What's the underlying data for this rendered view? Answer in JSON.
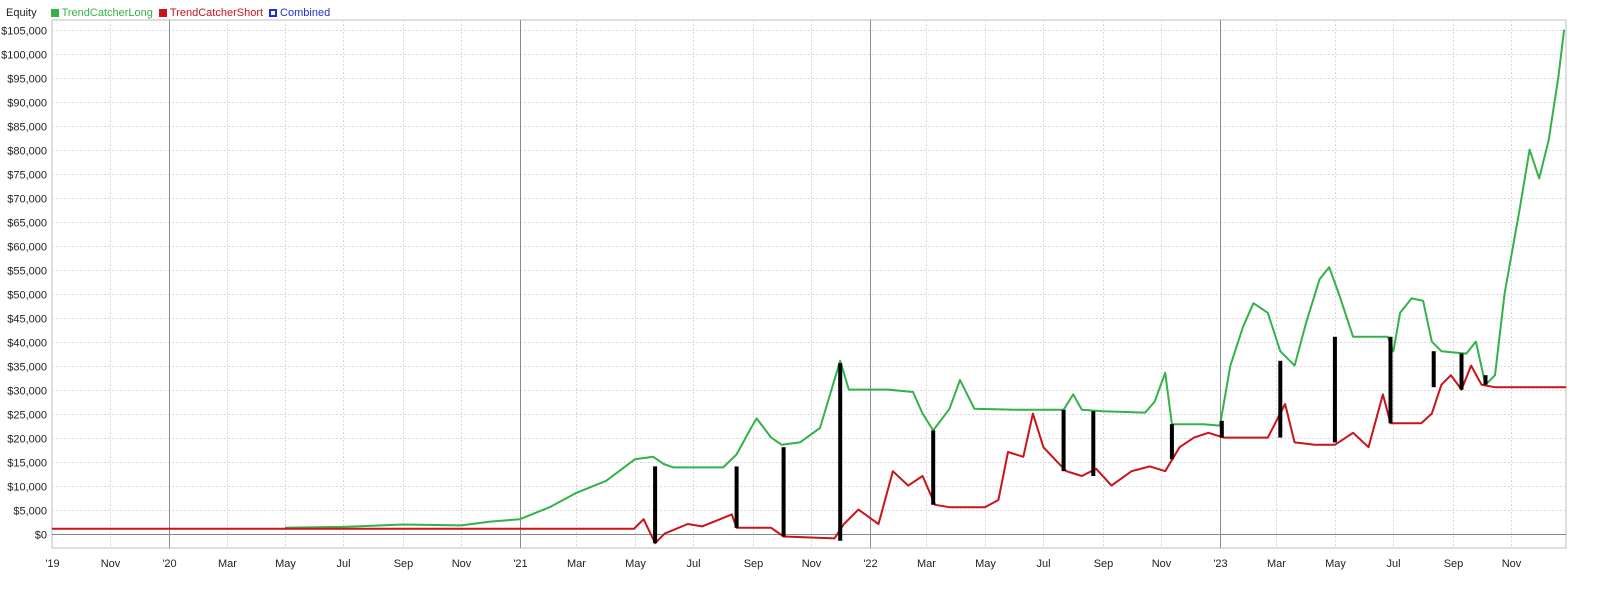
{
  "legend": {
    "title": "Equity",
    "items": [
      {
        "label": "TrendCatcherLong",
        "color": "#33b249",
        "filled": true
      },
      {
        "label": "TrendCatcherShort",
        "color": "#c8141b",
        "filled": true
      },
      {
        "label": "Combined",
        "color": "#1f2fd6",
        "filled": false
      }
    ]
  },
  "chart_data": {
    "type": "line",
    "title": "",
    "xlabel": "",
    "ylabel": "",
    "xlim": [
      "2019-09-01",
      "2023-12-28"
    ],
    "ylim": [
      -3000,
      107000
    ],
    "grid": true,
    "legend_position": "top-left",
    "x_ticks": [
      {
        "date": "2019-09-01",
        "label": "'19",
        "year_start": false
      },
      {
        "date": "2019-11-01",
        "label": "Nov",
        "year_start": false
      },
      {
        "date": "2020-01-01",
        "label": "'20",
        "year_start": true
      },
      {
        "date": "2020-03-01",
        "label": "Mar",
        "year_start": false
      },
      {
        "date": "2020-05-01",
        "label": "May",
        "year_start": false
      },
      {
        "date": "2020-07-01",
        "label": "Jul",
        "year_start": false
      },
      {
        "date": "2020-09-01",
        "label": "Sep",
        "year_start": false
      },
      {
        "date": "2020-11-01",
        "label": "Nov",
        "year_start": false
      },
      {
        "date": "2021-01-01",
        "label": "'21",
        "year_start": true
      },
      {
        "date": "2021-03-01",
        "label": "Mar",
        "year_start": false
      },
      {
        "date": "2021-05-01",
        "label": "May",
        "year_start": false
      },
      {
        "date": "2021-07-01",
        "label": "Jul",
        "year_start": false
      },
      {
        "date": "2021-09-01",
        "label": "Sep",
        "year_start": false
      },
      {
        "date": "2021-11-01",
        "label": "Nov",
        "year_start": false
      },
      {
        "date": "2022-01-01",
        "label": "'22",
        "year_start": true
      },
      {
        "date": "2022-03-01",
        "label": "Mar",
        "year_start": false
      },
      {
        "date": "2022-05-01",
        "label": "May",
        "year_start": false
      },
      {
        "date": "2022-07-01",
        "label": "Jul",
        "year_start": false
      },
      {
        "date": "2022-09-01",
        "label": "Sep",
        "year_start": false
      },
      {
        "date": "2022-11-01",
        "label": "Nov",
        "year_start": false
      },
      {
        "date": "2023-01-01",
        "label": "'23",
        "year_start": true
      },
      {
        "date": "2023-03-01",
        "label": "Mar",
        "year_start": false
      },
      {
        "date": "2023-05-01",
        "label": "May",
        "year_start": false
      },
      {
        "date": "2023-07-01",
        "label": "Jul",
        "year_start": false
      },
      {
        "date": "2023-09-01",
        "label": "Sep",
        "year_start": false
      },
      {
        "date": "2023-11-01",
        "label": "Nov",
        "year_start": false
      }
    ],
    "y_ticks": [
      {
        "value": 0,
        "label": "$0"
      },
      {
        "value": 5000,
        "label": "$5,000"
      },
      {
        "value": 10000,
        "label": "$10,000"
      },
      {
        "value": 15000,
        "label": "$15,000"
      },
      {
        "value": 20000,
        "label": "$20,000"
      },
      {
        "value": 25000,
        "label": "$25,000"
      },
      {
        "value": 30000,
        "label": "$30,000"
      },
      {
        "value": 35000,
        "label": "$35,000"
      },
      {
        "value": 40000,
        "label": "$40,000"
      },
      {
        "value": 45000,
        "label": "$45,000"
      },
      {
        "value": 50000,
        "label": "$50,000"
      },
      {
        "value": 55000,
        "label": "$55,000"
      },
      {
        "value": 60000,
        "label": "$60,000"
      },
      {
        "value": 65000,
        "label": "$65,000"
      },
      {
        "value": 70000,
        "label": "$70,000"
      },
      {
        "value": 75000,
        "label": "$75,000"
      },
      {
        "value": 80000,
        "label": "$80,000"
      },
      {
        "value": 85000,
        "label": "$85,000"
      },
      {
        "value": 90000,
        "label": "$90,000"
      },
      {
        "value": 95000,
        "label": "$95,000"
      },
      {
        "value": 100000,
        "label": "$100,000"
      },
      {
        "value": 105000,
        "label": "$105,000"
      }
    ],
    "series": [
      {
        "name": "TrendCatcherLong",
        "color": "#33b249",
        "points": [
          [
            "2020-05-01",
            1200
          ],
          [
            "2020-07-01",
            1400
          ],
          [
            "2020-09-01",
            1900
          ],
          [
            "2020-11-01",
            1700
          ],
          [
            "2020-12-01",
            2500
          ],
          [
            "2021-01-01",
            3000
          ],
          [
            "2021-02-01",
            5500
          ],
          [
            "2021-03-01",
            8500
          ],
          [
            "2021-04-01",
            11000
          ],
          [
            "2021-05-01",
            15500
          ],
          [
            "2021-05-20",
            16000
          ],
          [
            "2021-05-31",
            14500
          ],
          [
            "2021-06-10",
            13800
          ],
          [
            "2021-08-01",
            13800
          ],
          [
            "2021-08-15",
            16500
          ],
          [
            "2021-08-30",
            22000
          ],
          [
            "2021-09-05",
            24000
          ],
          [
            "2021-09-20",
            20000
          ],
          [
            "2021-10-01",
            18500
          ],
          [
            "2021-10-20",
            19000
          ],
          [
            "2021-11-10",
            22000
          ],
          [
            "2021-11-22",
            30000
          ],
          [
            "2021-12-01",
            36000
          ],
          [
            "2021-12-10",
            30000
          ],
          [
            "2022-01-20",
            30000
          ],
          [
            "2022-02-15",
            29500
          ],
          [
            "2022-02-25",
            25000
          ],
          [
            "2022-03-08",
            21500
          ],
          [
            "2022-03-25",
            26000
          ],
          [
            "2022-04-05",
            32000
          ],
          [
            "2022-04-20",
            26000
          ],
          [
            "2022-06-01",
            25800
          ],
          [
            "2022-07-10",
            25800
          ],
          [
            "2022-07-22",
            25800
          ],
          [
            "2022-08-01",
            29000
          ],
          [
            "2022-08-10",
            25800
          ],
          [
            "2022-09-01",
            25500
          ],
          [
            "2022-10-15",
            25200
          ],
          [
            "2022-10-25",
            27500
          ],
          [
            "2022-11-05",
            33500
          ],
          [
            "2022-11-12",
            22800
          ],
          [
            "2022-12-15",
            22800
          ],
          [
            "2023-01-01",
            22500
          ],
          [
            "2023-01-12",
            35000
          ],
          [
            "2023-01-25",
            43000
          ],
          [
            "2023-02-05",
            48000
          ],
          [
            "2023-02-20",
            46000
          ],
          [
            "2023-03-05",
            38000
          ],
          [
            "2023-03-20",
            35000
          ],
          [
            "2023-04-01",
            44000
          ],
          [
            "2023-04-15",
            53000
          ],
          [
            "2023-04-25",
            55500
          ],
          [
            "2023-05-05",
            50000
          ],
          [
            "2023-05-20",
            41000
          ],
          [
            "2023-06-25",
            41000
          ],
          [
            "2023-07-01",
            38000
          ],
          [
            "2023-07-08",
            46000
          ],
          [
            "2023-07-20",
            49000
          ],
          [
            "2023-08-01",
            48500
          ],
          [
            "2023-08-10",
            40000
          ],
          [
            "2023-08-20",
            38000
          ],
          [
            "2023-09-15",
            37500
          ],
          [
            "2023-09-25",
            40000
          ],
          [
            "2023-10-05",
            31000
          ],
          [
            "2023-10-15",
            33000
          ],
          [
            "2023-10-25",
            50000
          ],
          [
            "2023-11-10",
            68000
          ],
          [
            "2023-11-20",
            80000
          ],
          [
            "2023-11-30",
            74000
          ],
          [
            "2023-12-10",
            82000
          ],
          [
            "2023-12-20",
            95000
          ],
          [
            "2023-12-26",
            105000
          ]
        ]
      },
      {
        "name": "TrendCatcherShort",
        "color": "#c8141b",
        "points": [
          [
            "2019-09-01",
            1000
          ],
          [
            "2020-11-01",
            1000
          ],
          [
            "2021-04-30",
            1000
          ],
          [
            "2021-05-10",
            3000
          ],
          [
            "2021-05-22",
            -2000
          ],
          [
            "2021-06-01",
            0
          ],
          [
            "2021-06-25",
            2000
          ],
          [
            "2021-07-10",
            1500
          ],
          [
            "2021-08-10",
            4000
          ],
          [
            "2021-08-15",
            1200
          ],
          [
            "2021-09-20",
            1200
          ],
          [
            "2021-10-03",
            -600
          ],
          [
            "2021-11-25",
            -1000
          ],
          [
            "2021-12-05",
            2000
          ],
          [
            "2021-12-20",
            5000
          ],
          [
            "2022-01-10",
            2000
          ],
          [
            "2022-01-25",
            13000
          ],
          [
            "2022-02-10",
            10000
          ],
          [
            "2022-02-25",
            12000
          ],
          [
            "2022-03-10",
            6000
          ],
          [
            "2022-03-25",
            5500
          ],
          [
            "2022-05-01",
            5500
          ],
          [
            "2022-05-15",
            7000
          ],
          [
            "2022-05-25",
            17000
          ],
          [
            "2022-06-10",
            16000
          ],
          [
            "2022-06-20",
            25000
          ],
          [
            "2022-07-01",
            18000
          ],
          [
            "2022-07-15",
            15000
          ],
          [
            "2022-07-25",
            13000
          ],
          [
            "2022-08-10",
            12000
          ],
          [
            "2022-08-25",
            13500
          ],
          [
            "2022-09-10",
            10000
          ],
          [
            "2022-10-01",
            13000
          ],
          [
            "2022-10-20",
            14000
          ],
          [
            "2022-11-05",
            13000
          ],
          [
            "2022-11-20",
            18000
          ],
          [
            "2022-12-05",
            20000
          ],
          [
            "2022-12-20",
            21000
          ],
          [
            "2023-01-05",
            20000
          ],
          [
            "2023-02-20",
            20000
          ],
          [
            "2023-03-10",
            27000
          ],
          [
            "2023-03-20",
            19000
          ],
          [
            "2023-04-10",
            18500
          ],
          [
            "2023-05-01",
            18500
          ],
          [
            "2023-05-20",
            21000
          ],
          [
            "2023-06-05",
            18000
          ],
          [
            "2023-06-20",
            29000
          ],
          [
            "2023-06-28",
            23000
          ],
          [
            "2023-07-30",
            23000
          ],
          [
            "2023-08-10",
            25000
          ],
          [
            "2023-08-20",
            31000
          ],
          [
            "2023-08-30",
            33000
          ],
          [
            "2023-09-10",
            30000
          ],
          [
            "2023-09-20",
            35000
          ],
          [
            "2023-10-01",
            31000
          ],
          [
            "2023-10-15",
            30500
          ],
          [
            "2023-12-28",
            30500
          ]
        ]
      }
    ],
    "trade_markers": [
      {
        "date": "2021-05-22",
        "from": -2000,
        "to": 14000
      },
      {
        "date": "2021-08-15",
        "from": 1200,
        "to": 14000
      },
      {
        "date": "2021-10-03",
        "from": -600,
        "to": 18000
      },
      {
        "date": "2021-12-01",
        "from": -1500,
        "to": 35500
      },
      {
        "date": "2022-03-08",
        "from": 6000,
        "to": 21500
      },
      {
        "date": "2022-07-22",
        "from": 13000,
        "to": 25800
      },
      {
        "date": "2022-08-22",
        "from": 12000,
        "to": 25500
      },
      {
        "date": "2022-11-12",
        "from": 15500,
        "to": 22800
      },
      {
        "date": "2023-01-03",
        "from": 20000,
        "to": 23500
      },
      {
        "date": "2023-03-05",
        "from": 20000,
        "to": 36000
      },
      {
        "date": "2023-05-01",
        "from": 19000,
        "to": 41000
      },
      {
        "date": "2023-06-28",
        "from": 23000,
        "to": 41000
      },
      {
        "date": "2023-08-12",
        "from": 30500,
        "to": 38000
      },
      {
        "date": "2023-09-10",
        "from": 30000,
        "to": 37500
      },
      {
        "date": "2023-10-05",
        "from": 31000,
        "to": 33000
      }
    ]
  }
}
